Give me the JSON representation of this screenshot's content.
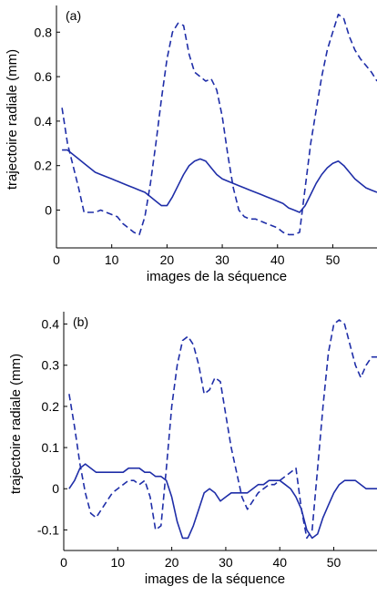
{
  "chart_data": [
    {
      "type": "line",
      "panel_label": "(a)",
      "xlabel": "images de la séquence",
      "ylabel": "trajectoire radiale (mm)",
      "xlim": [
        0,
        58
      ],
      "ylim": [
        -0.17,
        0.92
      ],
      "xticks": [
        0,
        10,
        20,
        30,
        40,
        50
      ],
      "yticks": [
        0,
        0.2,
        0.4,
        0.6,
        0.8
      ],
      "ytick_labels": [
        "0",
        "0.2",
        "0.4",
        "0.6",
        "0.8"
      ],
      "grid": false,
      "series": [
        {
          "style": "dashed",
          "color": "#1f2ea8",
          "x": [
            1,
            2,
            3,
            4,
            5,
            6,
            7,
            8,
            9,
            10,
            11,
            12,
            13,
            14,
            15,
            16,
            17,
            18,
            19,
            20,
            21,
            22,
            23,
            24,
            25,
            26,
            27,
            28,
            29,
            30,
            31,
            32,
            33,
            34,
            35,
            36,
            37,
            38,
            39,
            40,
            41,
            42,
            43,
            44,
            45,
            46,
            47,
            48,
            49,
            50,
            51,
            52,
            53,
            54,
            55,
            56,
            57,
            58
          ],
          "y": [
            0.46,
            0.3,
            0.2,
            0.1,
            -0.01,
            -0.01,
            -0.01,
            0.0,
            -0.01,
            -0.02,
            -0.03,
            -0.06,
            -0.08,
            -0.1,
            -0.11,
            -0.03,
            0.12,
            0.3,
            0.5,
            0.68,
            0.8,
            0.84,
            0.83,
            0.7,
            0.62,
            0.6,
            0.58,
            0.59,
            0.54,
            0.42,
            0.25,
            0.1,
            0.0,
            -0.03,
            -0.04,
            -0.04,
            -0.05,
            -0.06,
            -0.07,
            -0.08,
            -0.1,
            -0.11,
            -0.11,
            -0.1,
            0.1,
            0.3,
            0.45,
            0.6,
            0.72,
            0.8,
            0.88,
            0.86,
            0.78,
            0.72,
            0.68,
            0.65,
            0.62,
            0.58
          ]
        },
        {
          "style": "solid",
          "color": "#1f2ea8",
          "x": [
            1,
            2,
            3,
            4,
            5,
            6,
            7,
            8,
            9,
            10,
            11,
            12,
            13,
            14,
            15,
            16,
            17,
            18,
            19,
            20,
            21,
            22,
            23,
            24,
            25,
            26,
            27,
            28,
            29,
            30,
            31,
            32,
            33,
            34,
            35,
            36,
            37,
            38,
            39,
            40,
            41,
            42,
            43,
            44,
            45,
            46,
            47,
            48,
            49,
            50,
            51,
            52,
            53,
            54,
            55,
            56,
            57,
            58
          ],
          "y": [
            0.27,
            0.27,
            0.25,
            0.23,
            0.21,
            0.19,
            0.17,
            0.16,
            0.15,
            0.14,
            0.13,
            0.12,
            0.11,
            0.1,
            0.09,
            0.08,
            0.06,
            0.04,
            0.02,
            0.02,
            0.06,
            0.11,
            0.16,
            0.2,
            0.22,
            0.23,
            0.22,
            0.19,
            0.16,
            0.14,
            0.13,
            0.12,
            0.11,
            0.1,
            0.09,
            0.08,
            0.07,
            0.06,
            0.05,
            0.04,
            0.03,
            0.01,
            0.0,
            -0.01,
            0.02,
            0.07,
            0.12,
            0.16,
            0.19,
            0.21,
            0.22,
            0.2,
            0.17,
            0.14,
            0.12,
            0.1,
            0.09,
            0.08
          ]
        }
      ]
    },
    {
      "type": "line",
      "panel_label": "(b)",
      "xlabel": "images de la séquence",
      "ylabel": "trajectoire radiale (mm)",
      "xlim": [
        0,
        58
      ],
      "ylim": [
        -0.15,
        0.43
      ],
      "xticks": [
        0,
        10,
        20,
        30,
        40,
        50
      ],
      "yticks": [
        -0.1,
        0,
        0.1,
        0.2,
        0.3,
        0.4
      ],
      "ytick_labels": [
        "-0.1",
        "0",
        "0.1",
        "0.2",
        "0.3",
        "0.4"
      ],
      "grid": false,
      "series": [
        {
          "style": "dashed",
          "color": "#1f2ea8",
          "x": [
            1,
            2,
            3,
            4,
            5,
            6,
            7,
            8,
            9,
            10,
            11,
            12,
            13,
            14,
            15,
            16,
            17,
            18,
            19,
            20,
            21,
            22,
            23,
            24,
            25,
            26,
            27,
            28,
            29,
            30,
            31,
            32,
            33,
            34,
            35,
            36,
            37,
            38,
            39,
            40,
            41,
            42,
            43,
            44,
            45,
            46,
            47,
            48,
            49,
            50,
            51,
            52,
            53,
            54,
            55,
            56,
            57,
            58
          ],
          "y": [
            0.23,
            0.15,
            0.06,
            -0.01,
            -0.06,
            -0.07,
            -0.05,
            -0.03,
            -0.01,
            0.0,
            0.01,
            0.02,
            0.02,
            0.01,
            0.02,
            -0.02,
            -0.1,
            -0.09,
            0.05,
            0.2,
            0.3,
            0.36,
            0.37,
            0.35,
            0.3,
            0.23,
            0.24,
            0.27,
            0.26,
            0.18,
            0.1,
            0.04,
            -0.02,
            -0.05,
            -0.03,
            -0.01,
            0.0,
            0.01,
            0.01,
            0.02,
            0.03,
            0.04,
            0.05,
            -0.05,
            -0.12,
            -0.1,
            0.05,
            0.2,
            0.33,
            0.4,
            0.41,
            0.4,
            0.35,
            0.3,
            0.27,
            0.3,
            0.32,
            0.32
          ]
        },
        {
          "style": "solid",
          "color": "#1f2ea8",
          "x": [
            1,
            2,
            3,
            4,
            5,
            6,
            7,
            8,
            9,
            10,
            11,
            12,
            13,
            14,
            15,
            16,
            17,
            18,
            19,
            20,
            21,
            22,
            23,
            24,
            25,
            26,
            27,
            28,
            29,
            30,
            31,
            32,
            33,
            34,
            35,
            36,
            37,
            38,
            39,
            40,
            41,
            42,
            43,
            44,
            45,
            46,
            47,
            48,
            49,
            50,
            51,
            52,
            53,
            54,
            55,
            56,
            57,
            58
          ],
          "y": [
            0.0,
            0.02,
            0.05,
            0.06,
            0.05,
            0.04,
            0.04,
            0.04,
            0.04,
            0.04,
            0.04,
            0.05,
            0.05,
            0.05,
            0.04,
            0.04,
            0.03,
            0.03,
            0.02,
            -0.02,
            -0.08,
            -0.12,
            -0.12,
            -0.09,
            -0.05,
            -0.01,
            0.0,
            -0.01,
            -0.03,
            -0.02,
            -0.01,
            -0.01,
            -0.01,
            -0.01,
            0.0,
            0.01,
            0.01,
            0.02,
            0.02,
            0.02,
            0.01,
            0.0,
            -0.02,
            -0.05,
            -0.1,
            -0.12,
            -0.11,
            -0.07,
            -0.04,
            -0.01,
            0.01,
            0.02,
            0.02,
            0.02,
            0.01,
            0.0,
            0.0,
            0.0
          ]
        }
      ]
    }
  ]
}
